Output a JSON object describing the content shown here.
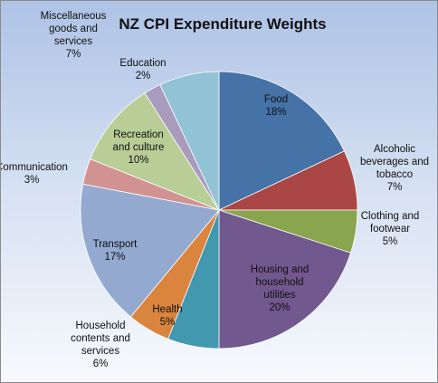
{
  "chart_data": {
    "type": "pie",
    "title": "NZ CPI Expenditure Weights",
    "slices": [
      {
        "name": "Food",
        "value": 18,
        "label": "18%",
        "color": "#4572a7"
      },
      {
        "name": "Alcoholic beverages and tobacco",
        "value": 7,
        "label": "7%",
        "color": "#aa4643"
      },
      {
        "name": "Clothing and footwear",
        "value": 5,
        "label": "5%",
        "color": "#89a54e"
      },
      {
        "name": "Housing and household utilities",
        "value": 20,
        "label": "20%",
        "color": "#71588f"
      },
      {
        "name": "Household contents and services",
        "value": 6,
        "label": "6%",
        "color": "#4198af"
      },
      {
        "name": "Health",
        "value": 5,
        "label": "5%",
        "color": "#db843d"
      },
      {
        "name": "Transport",
        "value": 17,
        "label": "17%",
        "color": "#93a9cf"
      },
      {
        "name": "Communication",
        "value": 3,
        "label": "3%",
        "color": "#d19392"
      },
      {
        "name": "Recreation and culture",
        "value": 10,
        "label": "10%",
        "color": "#b9cd96"
      },
      {
        "name": "Education",
        "value": 2,
        "label": "2%",
        "color": "#a99bbd"
      },
      {
        "name": "Miscellaneous goods and services",
        "value": 7,
        "label": "7%",
        "color": "#92c3d4"
      }
    ]
  }
}
